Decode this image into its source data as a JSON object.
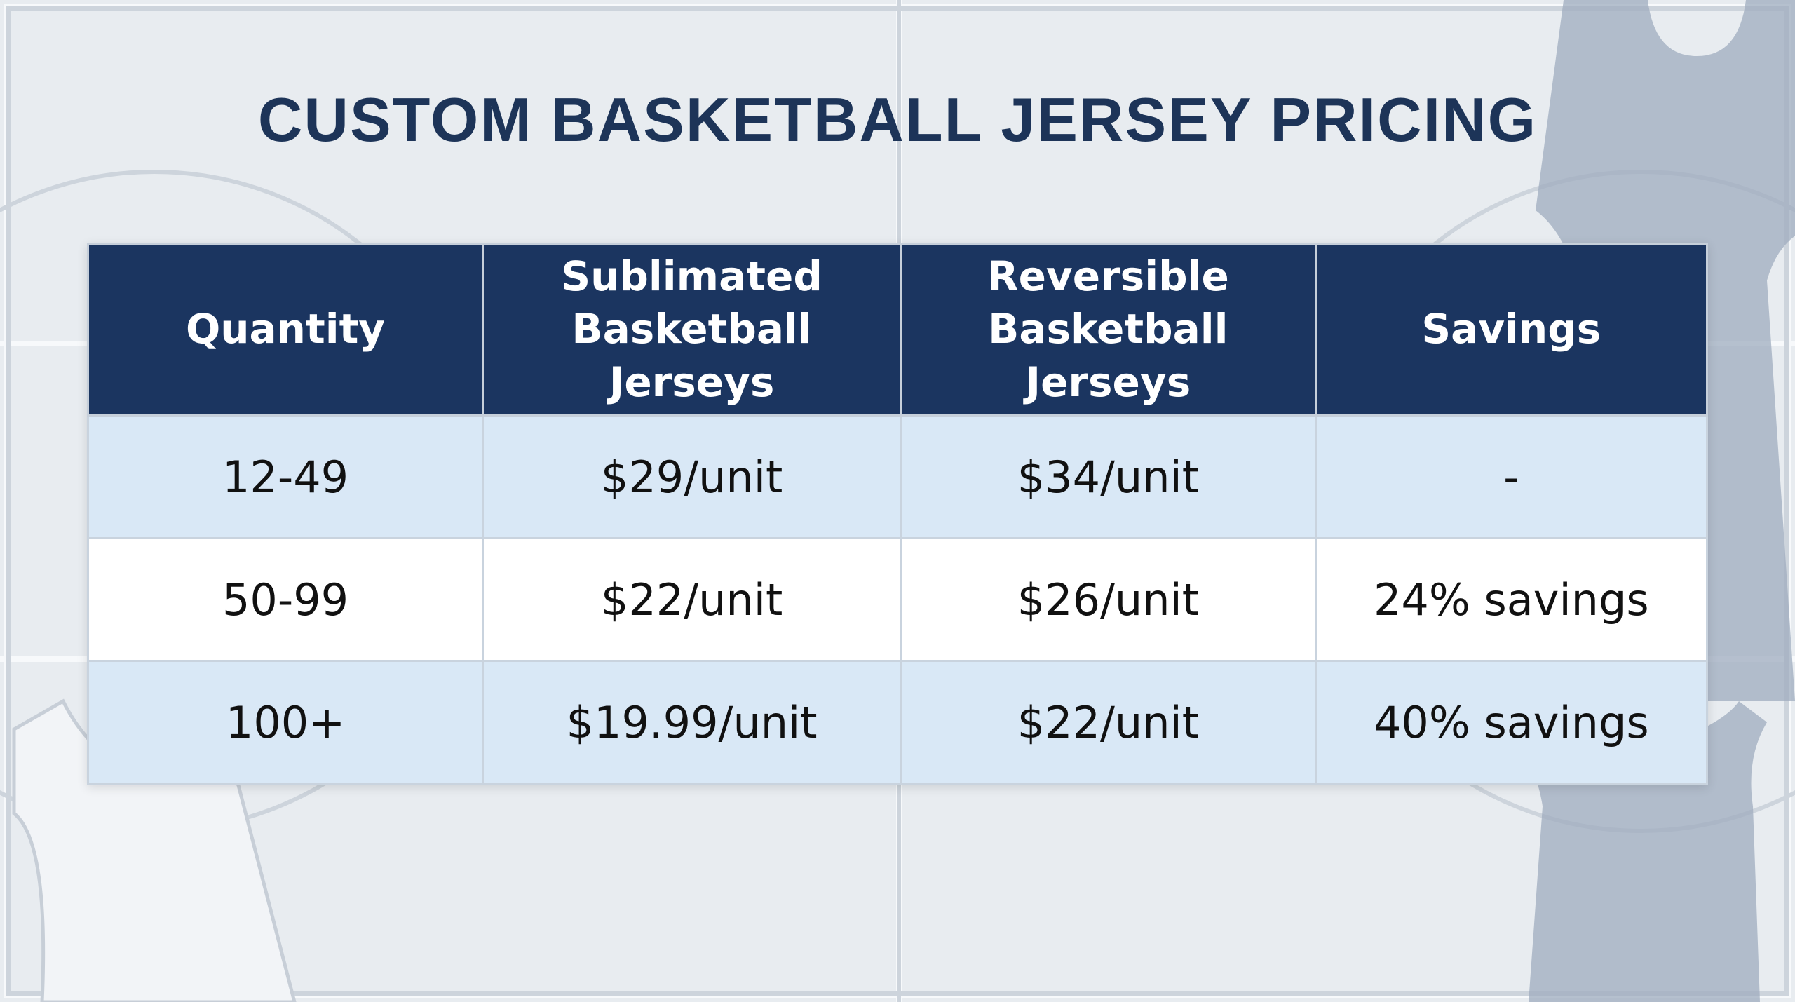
{
  "header": {
    "title": "CUSTOM BASKETBALL JERSEY PRICING"
  },
  "table": {
    "columns": [
      "Quantity",
      "Sublimated Basketball Jerseys",
      "Reversible Basketball Jerseys",
      "Savings"
    ],
    "rows": [
      [
        "12-49",
        "$29/unit",
        "$34/unit",
        "-"
      ],
      [
        "50-99",
        "$22/unit",
        "$26/unit",
        "24% savings"
      ],
      [
        "100+",
        "$19.99/unit",
        "$22/unit",
        "40% savings"
      ]
    ]
  }
}
